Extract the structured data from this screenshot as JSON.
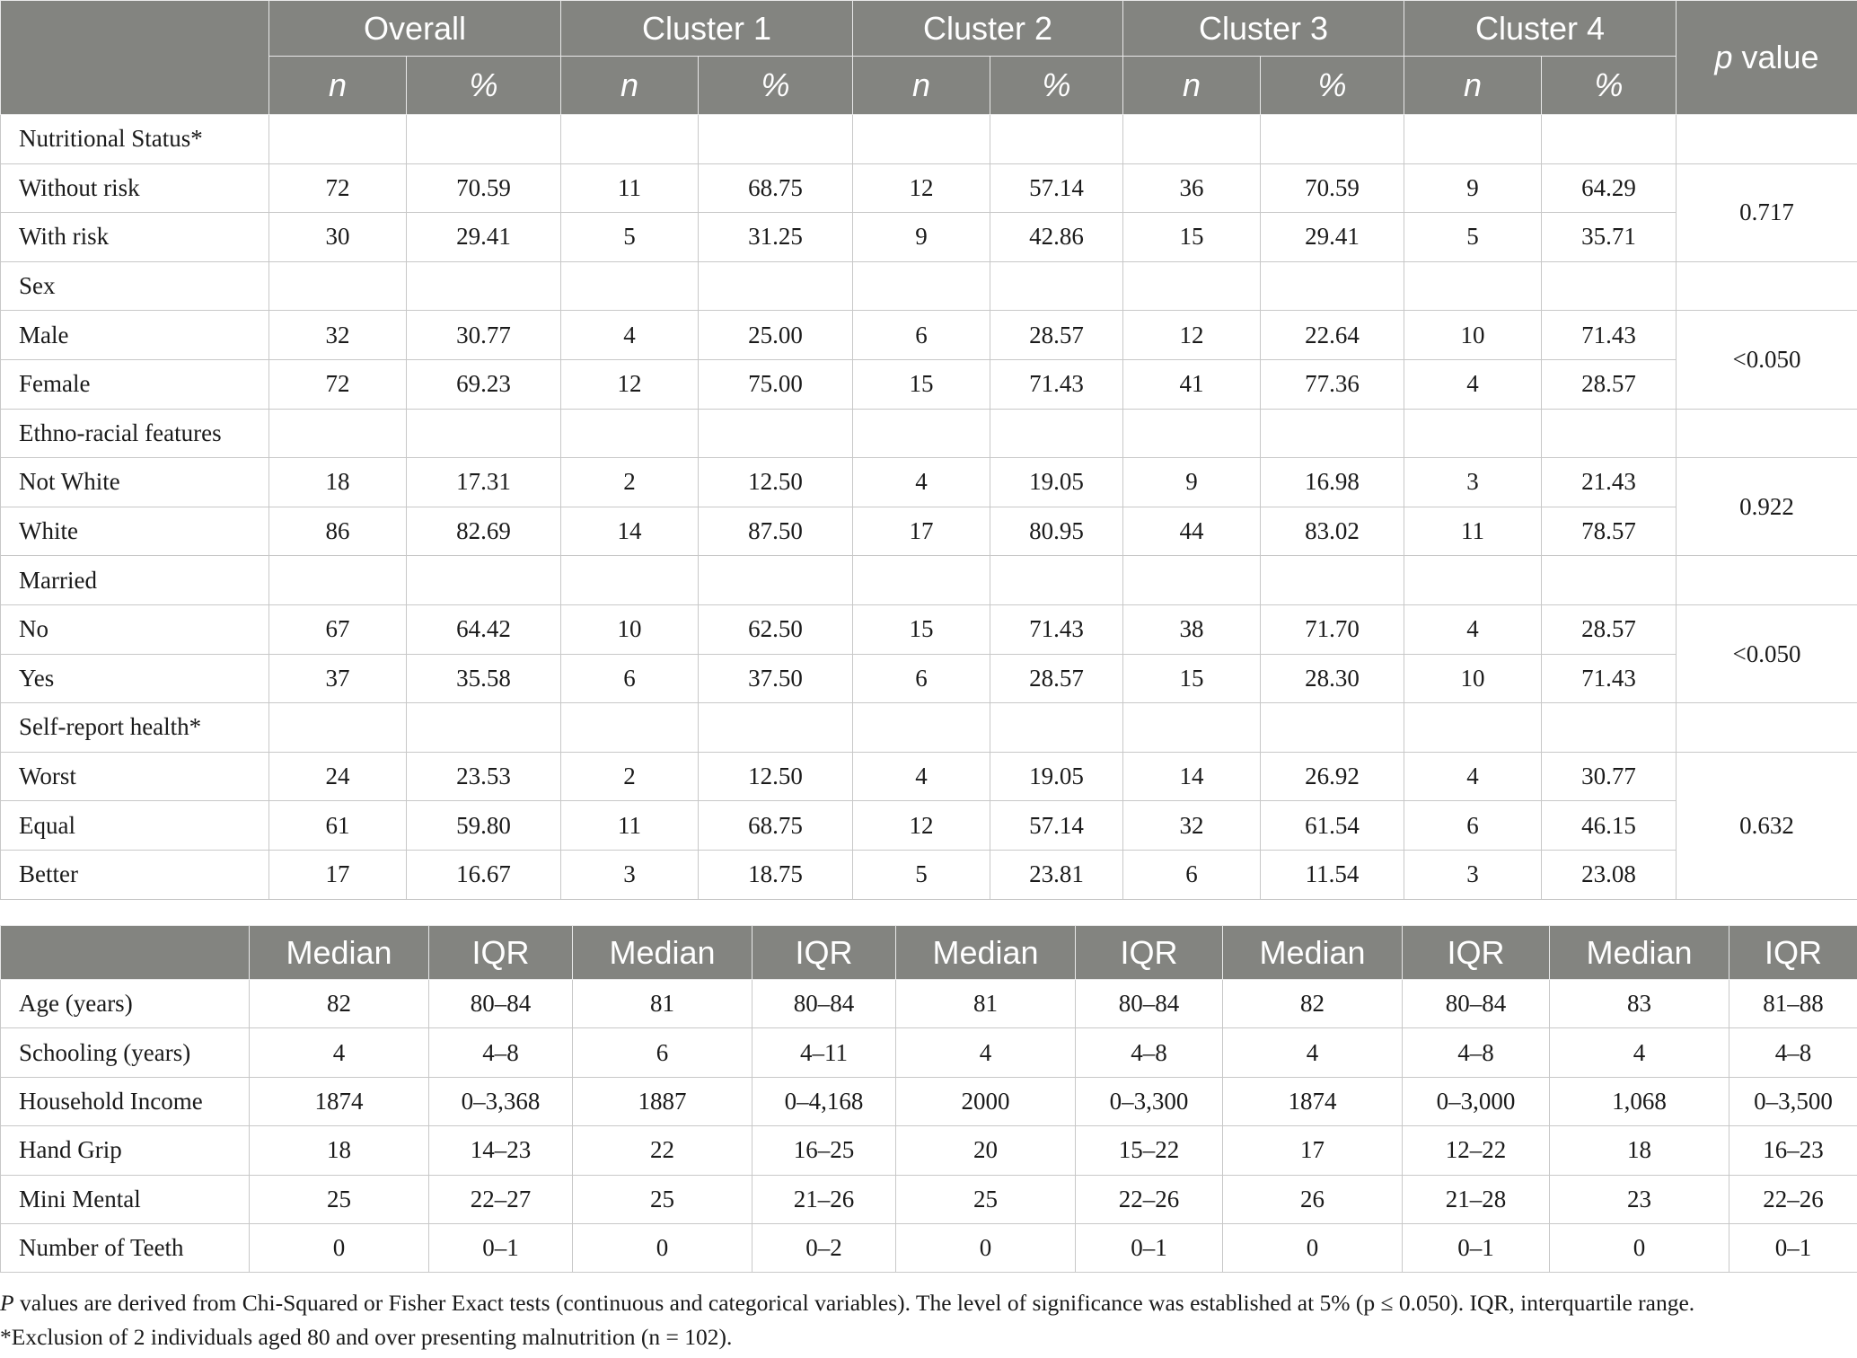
{
  "table1": {
    "groups": [
      "Overall",
      "Cluster 1",
      "Cluster 2",
      "Cluster 3",
      "Cluster 4"
    ],
    "sub_n": "n",
    "sub_pct": "%",
    "p_label_italic": "p",
    "p_label_rest": " value",
    "sections": [
      {
        "title": "Nutritional Status*",
        "p": "0.717",
        "rows": [
          {
            "label": "Without risk",
            "cells": [
              "72",
              "70.59",
              "11",
              "68.75",
              "12",
              "57.14",
              "36",
              "70.59",
              "9",
              "64.29"
            ]
          },
          {
            "label": "With risk",
            "cells": [
              "30",
              "29.41",
              "5",
              "31.25",
              "9",
              "42.86",
              "15",
              "29.41",
              "5",
              "35.71"
            ]
          }
        ]
      },
      {
        "title": "Sex",
        "p": "<0.050",
        "rows": [
          {
            "label": "Male",
            "cells": [
              "32",
              "30.77",
              "4",
              "25.00",
              "6",
              "28.57",
              "12",
              "22.64",
              "10",
              "71.43"
            ]
          },
          {
            "label": "Female",
            "cells": [
              "72",
              "69.23",
              "12",
              "75.00",
              "15",
              "71.43",
              "41",
              "77.36",
              "4",
              "28.57"
            ]
          }
        ]
      },
      {
        "title": "Ethno-racial features",
        "p": "0.922",
        "rows": [
          {
            "label": "Not White",
            "cells": [
              "18",
              "17.31",
              "2",
              "12.50",
              "4",
              "19.05",
              "9",
              "16.98",
              "3",
              "21.43"
            ]
          },
          {
            "label": "White",
            "cells": [
              "86",
              "82.69",
              "14",
              "87.50",
              "17",
              "80.95",
              "44",
              "83.02",
              "11",
              "78.57"
            ]
          }
        ]
      },
      {
        "title": "Married",
        "p": "<0.050",
        "rows": [
          {
            "label": "No",
            "cells": [
              "67",
              "64.42",
              "10",
              "62.50",
              "15",
              "71.43",
              "38",
              "71.70",
              "4",
              "28.57"
            ]
          },
          {
            "label": "Yes",
            "cells": [
              "37",
              "35.58",
              "6",
              "37.50",
              "6",
              "28.57",
              "15",
              "28.30",
              "10",
              "71.43"
            ]
          }
        ]
      },
      {
        "title": "Self-report health*",
        "p": "0.632",
        "rows": [
          {
            "label": "Worst",
            "cells": [
              "24",
              "23.53",
              "2",
              "12.50",
              "4",
              "19.05",
              "14",
              "26.92",
              "4",
              "30.77"
            ]
          },
          {
            "label": "Equal",
            "cells": [
              "61",
              "59.80",
              "11",
              "68.75",
              "12",
              "57.14",
              "32",
              "61.54",
              "6",
              "46.15"
            ]
          },
          {
            "label": "Better",
            "cells": [
              "17",
              "16.67",
              "3",
              "18.75",
              "5",
              "23.81",
              "6",
              "11.54",
              "3",
              "23.08"
            ]
          }
        ]
      }
    ]
  },
  "table2": {
    "headers": [
      "",
      "Median",
      "IQR",
      "Median",
      "IQR",
      "Median",
      "IQR",
      "Median",
      "IQR",
      "Median",
      "IQR"
    ],
    "rows": [
      {
        "label": "Age (years)",
        "cells": [
          "82",
          "80–84",
          "81",
          "80–84",
          "81",
          "80–84",
          "82",
          "80–84",
          "83",
          "81–88"
        ]
      },
      {
        "label": "Schooling (years)",
        "cells": [
          "4",
          "4–8",
          "6",
          "4–11",
          "4",
          "4–8",
          "4",
          "4–8",
          "4",
          "4–8"
        ]
      },
      {
        "label": "Household Income",
        "cells": [
          "1874",
          "0–3,368",
          "1887",
          "0–4,168",
          "2000",
          "0–3,300",
          "1874",
          "0–3,000",
          "1,068",
          "0–3,500"
        ]
      },
      {
        "label": "Hand Grip",
        "cells": [
          "18",
          "14–23",
          "22",
          "16–25",
          "20",
          "15–22",
          "17",
          "12–22",
          "18",
          "16–23"
        ]
      },
      {
        "label": "Mini Mental",
        "cells": [
          "25",
          "22–27",
          "25",
          "21–26",
          "25",
          "22–26",
          "26",
          "21–28",
          "23",
          "22–26"
        ]
      },
      {
        "label": "Number of Teeth",
        "cells": [
          "0",
          "0–1",
          "0",
          "0–2",
          "0",
          "0–1",
          "0",
          "0–1",
          "0",
          "0–1"
        ]
      }
    ]
  },
  "footnotes": {
    "line1_italic": "P",
    "line1_rest": " values are derived from Chi-Squared or Fisher Exact tests (continuous and categorical variables). The level of significance was established at 5% (p ≤ 0.050). IQR, interquartile range.",
    "line2": "*Exclusion of 2 individuals aged 80 and over presenting malnutrition (n = 102)."
  }
}
